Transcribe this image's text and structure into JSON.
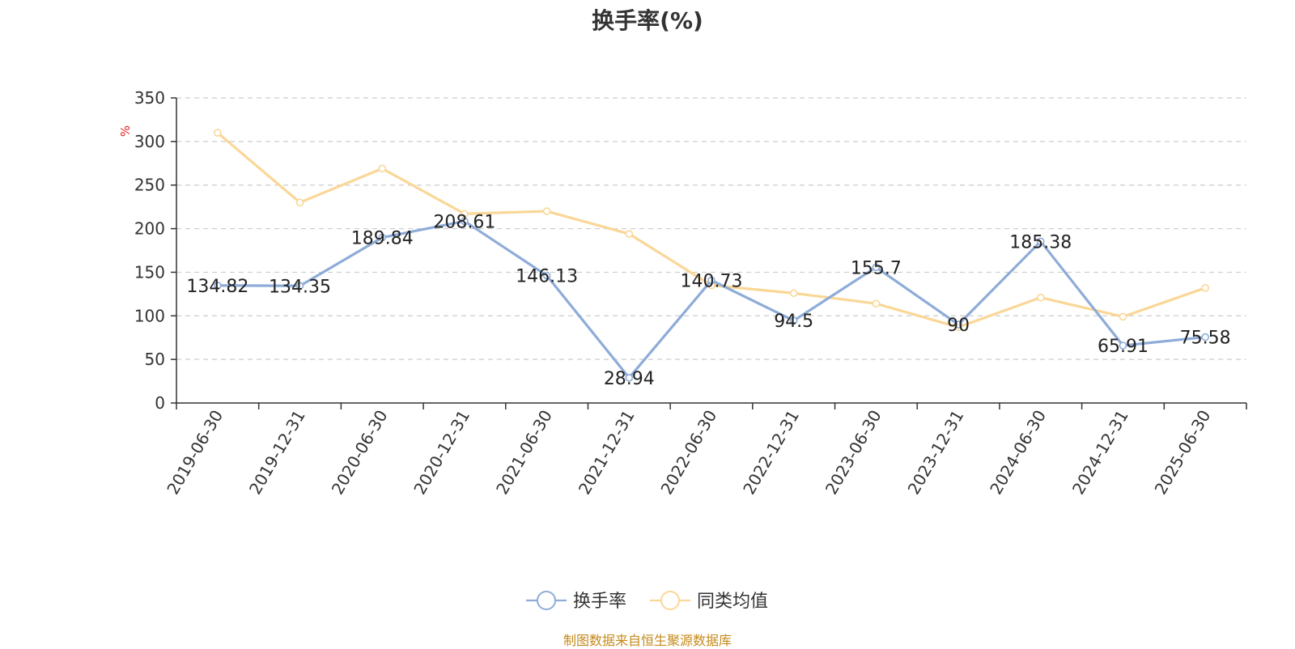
{
  "chart_data": {
    "type": "line",
    "title": "换手率(%)",
    "ylabel": "%",
    "xlabel": "",
    "ylim": [
      0,
      350
    ],
    "yticks": [
      0,
      50,
      100,
      150,
      200,
      250,
      300,
      350
    ],
    "grid": true,
    "legend_position": "bottom-center",
    "categories": [
      "2019-06-30",
      "2019-12-31",
      "2020-06-30",
      "2020-12-31",
      "2021-06-30",
      "2021-12-31",
      "2022-06-30",
      "2022-12-31",
      "2023-06-30",
      "2023-12-31",
      "2024-06-30",
      "2024-12-31",
      "2025-06-30"
    ],
    "series": [
      {
        "name": "换手率",
        "color": "#8eacd8",
        "values": [
          134.82,
          134.35,
          189.84,
          208.61,
          146.13,
          28.94,
          140.73,
          94.5,
          155.7,
          90,
          185.38,
          65.91,
          75.58
        ],
        "labels": [
          "134.82",
          "134.35",
          "189.84",
          "208.61",
          "146.13",
          "28.94",
          "140.73",
          "94.5",
          "155.7",
          "90",
          "185.38",
          "65.91",
          "75.58"
        ]
      },
      {
        "name": "同类均值",
        "color": "#fad797",
        "values": [
          310,
          230,
          269,
          217,
          220,
          194,
          135,
          126,
          114,
          87,
          121,
          99,
          132
        ]
      }
    ]
  },
  "source": "制图数据来自恒生聚源数据库",
  "colors": {
    "axis": "#333333",
    "grid": "#cccccc",
    "ylabel": "#e02020",
    "source": "#c48a1a"
  }
}
